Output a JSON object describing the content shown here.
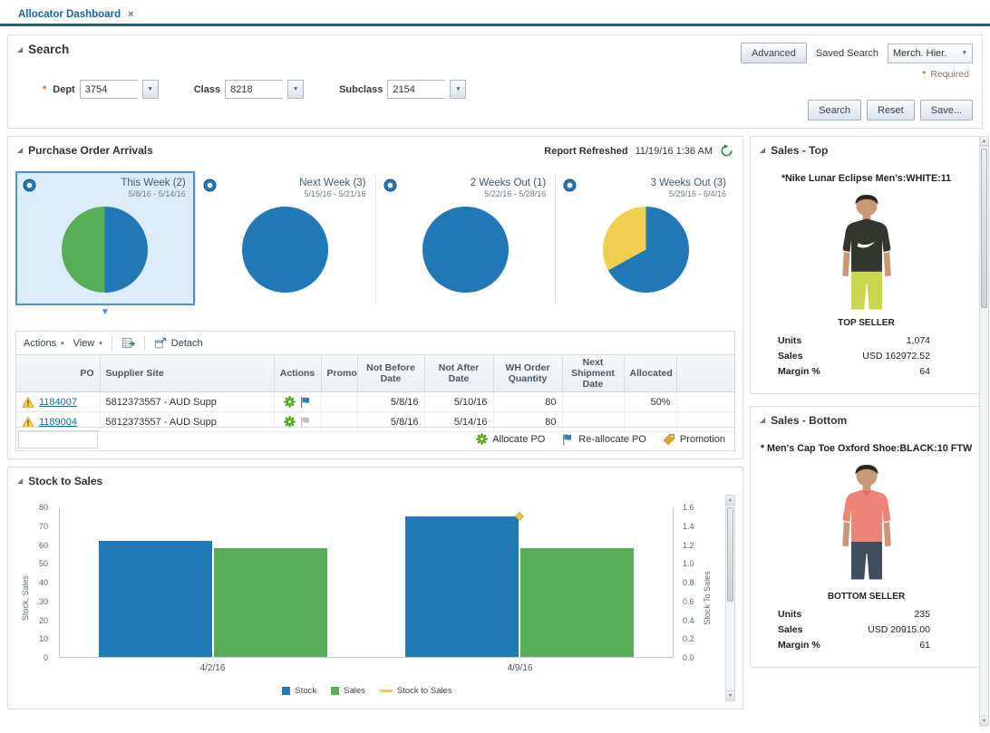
{
  "tab_bar": {
    "active_tab": "Allocator Dashboard",
    "close_icon": "×"
  },
  "icons": {
    "disclosure": "◢",
    "dropdown": "▼",
    "menu_caret": "▾",
    "selected_tile_pointer": "▼",
    "scroll_up": "▲",
    "scroll_down": "▼"
  },
  "search": {
    "title": "Search",
    "advanced_button": "Advanced",
    "saved_search_label": "Saved Search",
    "saved_search_value": "Merch. Hier.",
    "required_marker": "*",
    "required_note": "Required",
    "fields": [
      {
        "required": "*",
        "label": "Dept",
        "value": "3754"
      },
      {
        "required": "",
        "label": "Class",
        "value": "8218"
      },
      {
        "required": "",
        "label": "Subclass",
        "value": "2154"
      }
    ],
    "buttons": {
      "search": "Search",
      "reset": "Reset",
      "save": "Save..."
    }
  },
  "po_arrivals": {
    "title": "Purchase Order Arrivals",
    "refreshed_label": "Report Refreshed",
    "refreshed_time": "11/19/16 1:36 AM",
    "tiles": [
      {
        "label": "This Week (2)",
        "range": "5/8/16 - 5/14/16",
        "selected": true,
        "pie": {
          "from": 180,
          "segments": [
            {
              "color": "#58ad58",
              "pct": 50
            },
            {
              "color": "#2278b5",
              "pct": 50
            }
          ]
        }
      },
      {
        "label": "Next Week (3)",
        "range": "5/15/16 - 5/21/16",
        "selected": false,
        "pie": {
          "from": 0,
          "segments": [
            {
              "color": "#2278b5",
              "pct": 100
            }
          ]
        }
      },
      {
        "label": "2 Weeks Out (1)",
        "range": "5/22/16 - 5/28/16",
        "selected": false,
        "pie": {
          "from": 0,
          "segments": [
            {
              "color": "#2278b5",
              "pct": 100
            }
          ]
        }
      },
      {
        "label": "3 Weeks Out (3)",
        "range": "5/29/16 - 6/4/16",
        "selected": false,
        "pie": {
          "from": 0,
          "segments": [
            {
              "color": "#2278b5",
              "pct": 67
            },
            {
              "color": "#f2cd4e",
              "pct": 33
            }
          ]
        }
      }
    ],
    "toolbar": {
      "actions": "Actions",
      "view": "View",
      "detach": "Detach"
    },
    "table": {
      "columns": {
        "po": "PO",
        "supplier": "Supplier Site",
        "actions": "Actions",
        "promo": "Promo",
        "not_before": "Not Before Date",
        "not_after": "Not After Date",
        "wh_qty": "WH Order Quantity",
        "next_ship": "Next Shipment Date",
        "allocated": "Allocated"
      },
      "rows": [
        {
          "po": "1184007",
          "supplier": "5812373557 - AUD Supp",
          "promo": "",
          "not_before": "5/8/16",
          "not_after": "5/10/16",
          "wh_qty": "80",
          "next_ship": "",
          "allocated": "50%",
          "reallocate_active": true
        },
        {
          "po": "1189004",
          "supplier": "5812373557 - AUD Supp",
          "promo": "",
          "not_before": "5/8/16",
          "not_after": "5/14/16",
          "wh_qty": "80",
          "next_ship": "",
          "allocated": "",
          "reallocate_active": false
        }
      ],
      "legend": {
        "allocate": "Allocate PO",
        "reallocate": "Re-allocate PO",
        "promotion": "Promotion"
      }
    }
  },
  "stock_to_sales": {
    "title": "Stock to Sales"
  },
  "chart_data": {
    "type": "bar",
    "title": "Stock to Sales",
    "categories": [
      "4/2/16",
      "4/9/16"
    ],
    "series": [
      {
        "name": "Stock",
        "type": "bar",
        "color": "#2278b5",
        "axis": "left",
        "values": [
          62,
          75
        ]
      },
      {
        "name": "Sales",
        "type": "bar",
        "color": "#58ad58",
        "axis": "left",
        "values": [
          58,
          58
        ]
      },
      {
        "name": "Stock to Sales",
        "type": "line",
        "color": "#f2cd4e",
        "axis": "right",
        "values": [
          null,
          1.5
        ]
      }
    ],
    "axis_left": {
      "label": "Stock, Sales",
      "min": 0,
      "max": 80,
      "ticks": [
        0,
        10,
        20,
        30,
        40,
        50,
        60,
        70,
        80
      ]
    },
    "axis_right": {
      "label": "Stock To Sales",
      "min": 0,
      "max": 1.6,
      "ticks": [
        0,
        0.2,
        0.4,
        0.6,
        0.8,
        1,
        1.2,
        1.4,
        1.6
      ]
    },
    "legend_position": "bottom",
    "grid": false
  },
  "sales_top": {
    "title": "Sales - Top",
    "item": "*Nike Lunar Eclipse Men's:WHITE:11",
    "caption": "TOP SELLER",
    "image": {
      "shirt": "#33352f",
      "pants": "#c8d64b",
      "skin": "#c99875",
      "hair": "#2e2420",
      "accent": "#ffffff"
    },
    "stats": [
      {
        "label": "Units",
        "value": "1,074"
      },
      {
        "label": "Sales",
        "value": "USD 162972.52"
      },
      {
        "label": "Margin %",
        "value": "64"
      }
    ]
  },
  "sales_bottom": {
    "title": "Sales - Bottom",
    "item": "* Men's Cap Toe Oxford Shoe:BLACK:10 FTW",
    "caption": "BOTTOM SELLER",
    "image": {
      "shirt": "#ee8476",
      "pants": "#3e4e61",
      "skin": "#c99875",
      "hair": "#2e2420",
      "accent": "#d96f62"
    },
    "stats": [
      {
        "label": "Units",
        "value": "235"
      },
      {
        "label": "Sales",
        "value": "USD 20915.00"
      },
      {
        "label": "Margin %",
        "value": "61"
      }
    ]
  }
}
